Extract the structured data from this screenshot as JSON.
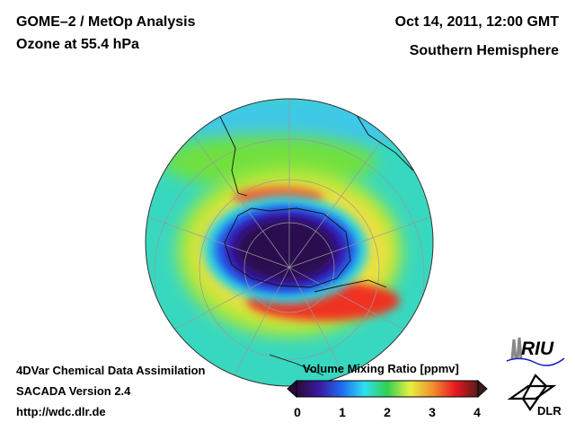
{
  "header": {
    "title_line1": "GOME–2 / MetOp Analysis",
    "title_line2": "Ozone at 55.4 hPa",
    "date": "Oct 14, 2011, 12:00 GMT",
    "region": "Southern Hemisphere"
  },
  "footer": {
    "line1": "4DVar Chemical Data Assimilation",
    "line2": "SACADA Version 2.4",
    "line3": "http://wdc.dlr.de"
  },
  "colorbar": {
    "title": "Volume Mixing Ratio [ppmv]",
    "ticks": [
      "0",
      "1",
      "2",
      "3",
      "4"
    ],
    "min": 0,
    "max": 4,
    "colors": [
      "#2a0a3a",
      "#3a1aa0",
      "#1e6cf0",
      "#30e0f0",
      "#30d050",
      "#e8f040",
      "#f09030",
      "#e81a20",
      "#5a1a1a"
    ]
  },
  "logos": {
    "riu": "RIU",
    "dlr": "DLR"
  }
}
